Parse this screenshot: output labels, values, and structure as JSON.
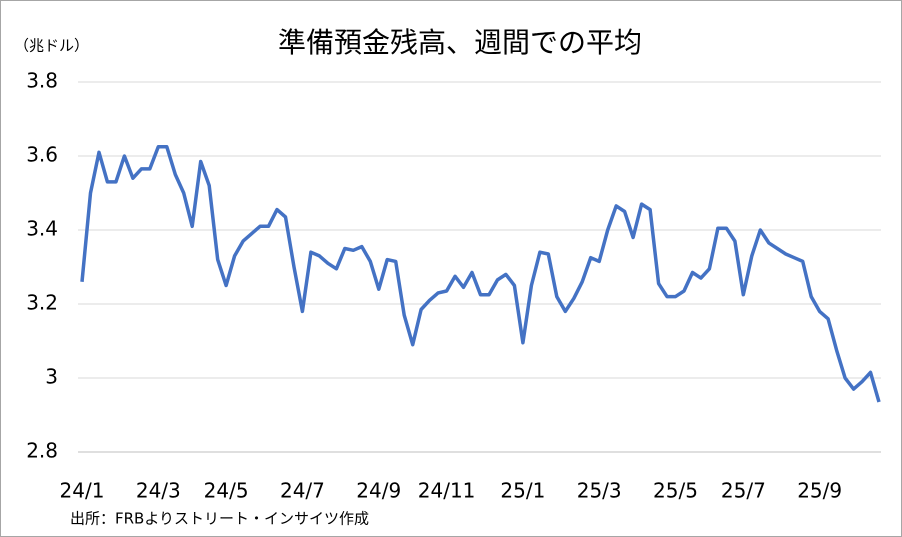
{
  "chart_data": {
    "type": "line",
    "title": "準備預金残高、週間での平均",
    "y_unit_label": "（兆ドル）",
    "source_note": "出所：FRBよりストリート・インサイツ作成",
    "categories": [
      "24/1",
      null,
      null,
      null,
      null,
      null,
      null,
      null,
      null,
      "24/3",
      null,
      null,
      null,
      null,
      null,
      null,
      null,
      "24/5",
      null,
      null,
      null,
      null,
      null,
      null,
      null,
      null,
      "24/7",
      null,
      null,
      null,
      null,
      null,
      null,
      null,
      null,
      "24/9",
      null,
      null,
      null,
      null,
      null,
      null,
      null,
      "24/11",
      null,
      null,
      null,
      null,
      null,
      null,
      null,
      null,
      "25/1",
      null,
      null,
      null,
      null,
      null,
      null,
      null,
      null,
      "25/3",
      null,
      null,
      null,
      null,
      null,
      null,
      null,
      null,
      "25/5",
      null,
      null,
      null,
      null,
      null,
      null,
      null,
      "25/7",
      null,
      null,
      null,
      null,
      null,
      null,
      null,
      null,
      "25/9",
      null,
      null,
      null,
      null,
      null,
      null,
      null
    ],
    "series": [
      {
        "color": "#4472c4",
        "values": [
          3.26,
          3.5,
          3.61,
          3.53,
          3.53,
          3.6,
          3.54,
          3.565,
          3.565,
          3.625,
          3.625,
          3.55,
          3.5,
          3.41,
          3.585,
          3.52,
          3.32,
          3.25,
          3.33,
          3.37,
          3.39,
          3.41,
          3.41,
          3.455,
          3.435,
          3.3,
          3.18,
          3.34,
          3.33,
          3.31,
          3.295,
          3.35,
          3.345,
          3.355,
          3.315,
          3.24,
          3.32,
          3.315,
          3.17,
          3.09,
          3.185,
          3.21,
          3.23,
          3.235,
          3.275,
          3.245,
          3.285,
          3.225,
          3.225,
          3.265,
          3.28,
          3.25,
          3.095,
          3.25,
          3.34,
          3.335,
          3.22,
          3.18,
          3.215,
          3.26,
          3.325,
          3.315,
          3.4,
          3.465,
          3.45,
          3.38,
          3.47,
          3.455,
          3.255,
          3.22,
          3.22,
          3.235,
          3.285,
          3.27,
          3.295,
          3.405,
          3.405,
          3.37,
          3.225,
          3.33,
          3.4,
          3.365,
          3.35,
          3.335,
          3.325,
          3.315,
          3.22,
          3.18,
          3.16,
          3.075,
          3.0,
          2.97,
          2.99,
          3.015,
          2.935
        ]
      }
    ],
    "ylim": [
      2.8,
      3.8
    ],
    "yticks": [
      2.8,
      3,
      3.2,
      3.4,
      3.6,
      3.8
    ],
    "grid": true
  }
}
